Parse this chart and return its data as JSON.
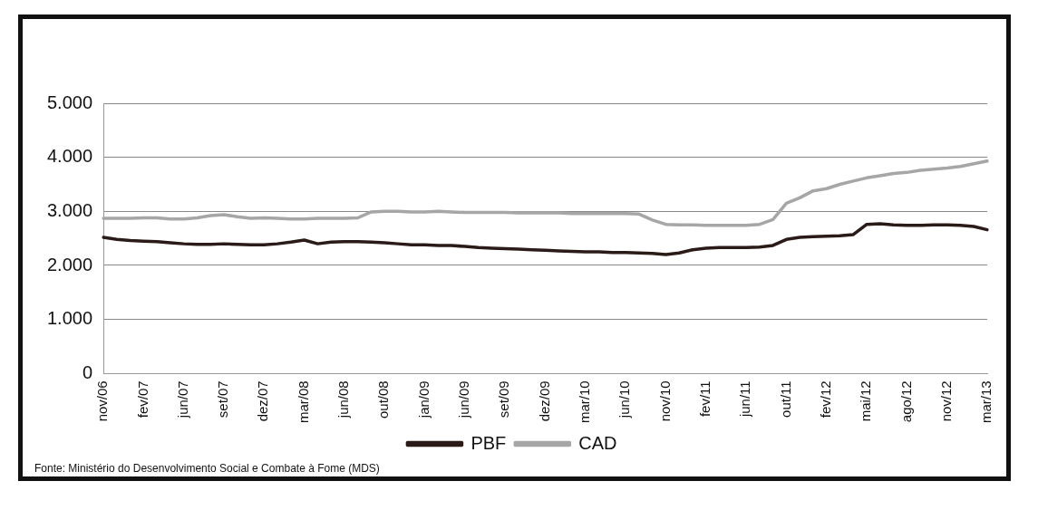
{
  "chart_data": {
    "type": "line",
    "categories": [
      "nov/06",
      null,
      null,
      "fev/07",
      null,
      null,
      "jun/07",
      null,
      null,
      "set/07",
      null,
      null,
      "dez/07",
      null,
      null,
      "mar/08",
      null,
      null,
      "jun/08",
      null,
      null,
      "out/08",
      null,
      null,
      "jan/09",
      null,
      null,
      "jun/09",
      null,
      null,
      "set/09",
      null,
      null,
      "dez/09",
      null,
      null,
      "mar/10",
      null,
      null,
      "jun/10",
      null,
      null,
      "nov/10",
      null,
      null,
      "fev/11",
      null,
      null,
      "jun/11",
      null,
      null,
      "out/11",
      null,
      null,
      "fev/12",
      null,
      null,
      "mai/12",
      null,
      null,
      "ago/12",
      null,
      null,
      "nov/12",
      null,
      null,
      "mar/13"
    ],
    "series": [
      {
        "name": "PBF",
        "color": "#2a1a18",
        "values": [
          2520,
          2480,
          2460,
          2450,
          2440,
          2420,
          2400,
          2390,
          2390,
          2400,
          2390,
          2380,
          2380,
          2400,
          2430,
          2470,
          2400,
          2430,
          2440,
          2440,
          2430,
          2420,
          2400,
          2380,
          2380,
          2370,
          2370,
          2350,
          2330,
          2320,
          2310,
          2300,
          2290,
          2280,
          2270,
          2260,
          2250,
          2250,
          2240,
          2240,
          2230,
          2220,
          2200,
          2230,
          2290,
          2320,
          2330,
          2330,
          2330,
          2340,
          2370,
          2480,
          2520,
          2530,
          2540,
          2550,
          2570,
          2760,
          2770,
          2750,
          2740,
          2740,
          2750,
          2750,
          2740,
          2720,
          2660
        ]
      },
      {
        "name": "CAD",
        "color": "#a6a6a6",
        "values": [
          2870,
          2870,
          2870,
          2880,
          2880,
          2860,
          2860,
          2880,
          2920,
          2940,
          2900,
          2870,
          2880,
          2870,
          2860,
          2860,
          2870,
          2870,
          2870,
          2880,
          2990,
          3000,
          3000,
          2990,
          2990,
          3000,
          2990,
          2980,
          2980,
          2980,
          2980,
          2970,
          2970,
          2970,
          2970,
          2960,
          2960,
          2960,
          2960,
          2960,
          2950,
          2840,
          2760,
          2750,
          2750,
          2740,
          2740,
          2740,
          2740,
          2760,
          2850,
          3150,
          3250,
          3380,
          3420,
          3500,
          3560,
          3620,
          3660,
          3700,
          3720,
          3760,
          3780,
          3800,
          3830,
          3880,
          3930
        ]
      }
    ],
    "ylim": [
      0,
      5000
    ],
    "yticks": [
      {
        "value": 0,
        "label": "0"
      },
      {
        "value": 1000,
        "label": "1.000"
      },
      {
        "value": 2000,
        "label": "2.000"
      },
      {
        "value": 3000,
        "label": "3.000"
      },
      {
        "value": 4000,
        "label": "4.000"
      },
      {
        "value": 5000,
        "label": "5.000"
      }
    ],
    "grid": "y",
    "legend": "bottom",
    "marker": "none",
    "line_style": "solid",
    "annotations": [
      "Fonte: Ministério do Desenvolvimento Social e Combate à Fome (MDS)"
    ]
  }
}
